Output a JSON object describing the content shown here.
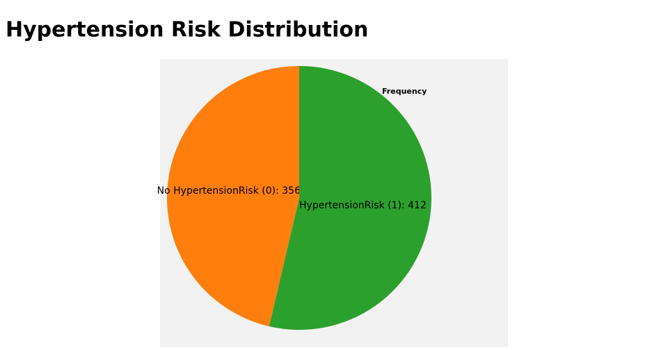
{
  "chart_data": {
    "type": "pie",
    "title": "Hypertension Risk Distribution",
    "legend_title": "Frequency",
    "categories": [
      "HypertensionRisk (1)",
      "No HypertensionRisk (0)"
    ],
    "values": [
      412,
      356
    ],
    "value_labels": [
      "HypertensionRisk (1): 412",
      "No HypertensionRisk (0): 356"
    ],
    "colors": [
      "#2ca02c",
      "#ff7f0e"
    ]
  }
}
